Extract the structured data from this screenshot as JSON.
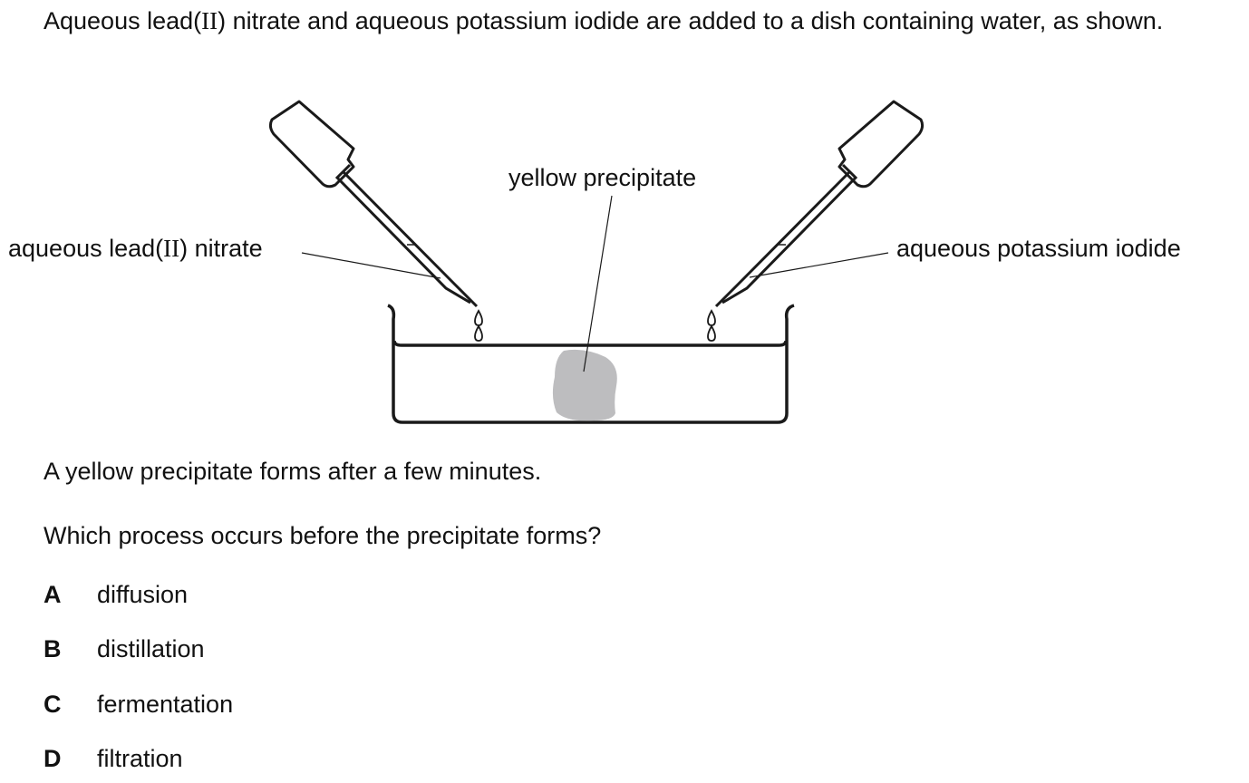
{
  "question": {
    "intro_before": "Aqueous lead(",
    "intro_roman": "II",
    "intro_after": ") nitrate and aqueous potassium iodide are added to a dish containing water, as shown.",
    "statement": "A yellow precipitate forms after a few minutes.",
    "prompt": "Which process occurs before the precipitate forms?"
  },
  "diagram": {
    "label_left_before": "aqueous lead(",
    "label_left_roman": "II",
    "label_left_after": ") nitrate",
    "label_center": "yellow precipitate",
    "label_right": "aqueous potassium iodide",
    "precipitate_color": "#bdbdbf"
  },
  "options": [
    {
      "letter": "A",
      "text": "diffusion"
    },
    {
      "letter": "B",
      "text": "distillation"
    },
    {
      "letter": "C",
      "text": "fermentation"
    },
    {
      "letter": "D",
      "text": "filtration"
    }
  ]
}
